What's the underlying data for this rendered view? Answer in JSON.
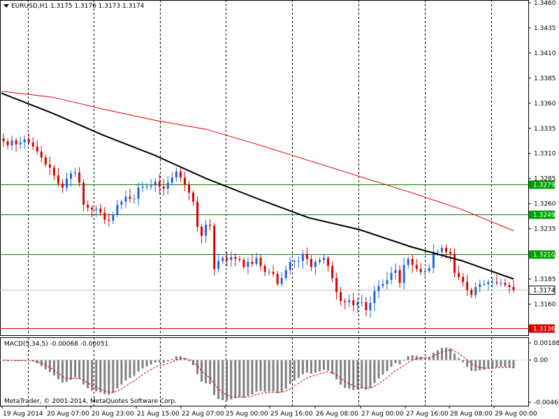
{
  "header": {
    "main_title": "EURUSD,H1  1.3175 1.3176 1.3173 1.3174",
    "macd_title": "MACD(5,34,5) -0.00068 -0.00051",
    "copyright": "MetaTrader, © 2001-2014, MetaQuotes Software Corp."
  },
  "colors": {
    "background": "#ffffff",
    "grid": "#000000",
    "bull_candle": "#1e64dc",
    "bear_candle": "#dc0000",
    "slow_ma": "#dc0000",
    "fast_ma": "#000000",
    "level_line": "#008000",
    "current_price_line": "#c0c0c0",
    "histogram": "#808080",
    "macd_signal": "#dc0000",
    "label_green": "#00a000",
    "label_red": "#dc0000",
    "label_white": "#ffffff"
  },
  "chart_data": [
    {
      "type": "candlestick",
      "symbol": "EURUSD",
      "timeframe": "H1",
      "last_ohlc": {
        "open": 1.3175,
        "high": 1.3176,
        "low": 1.3173,
        "close": 1.3174
      },
      "ylim": [
        1.3136,
        1.346
      ],
      "y_ticks": [
        "1.3460",
        "1.3435",
        "1.3410",
        "1.3385",
        "1.3360",
        "1.3335",
        "1.3310",
        "1.3285",
        "1.3260",
        "1.3235",
        "1.3210",
        "1.3185",
        "1.3160"
      ],
      "x_ticks": [
        "19 Aug 2014",
        "20 Aug 07:00",
        "20 Aug 23:00",
        "21 Aug 15:00",
        "22 Aug 07:00",
        "25 Aug 00:00",
        "25 Aug 16:00",
        "26 Aug 08:00",
        "27 Aug 00:00",
        "27 Aug 16:00",
        "28 Aug 08:00",
        "29 Aug 00:00"
      ],
      "price_levels": [
        {
          "label": "1.3279",
          "value": 1.3279,
          "kind": "green"
        },
        {
          "label": "1.3249",
          "value": 1.3249,
          "kind": "green"
        },
        {
          "label": "1.3210",
          "value": 1.321,
          "kind": "green"
        },
        {
          "label": "1.3174",
          "value": 1.3174,
          "kind": "current"
        },
        {
          "label": "1.3136",
          "value": 1.3136,
          "kind": "red"
        }
      ],
      "closes": [
        1.3322,
        1.3318,
        1.3323,
        1.3319,
        1.3321,
        1.3324,
        1.3321,
        1.3317,
        1.3312,
        1.3306,
        1.3299,
        1.3296,
        1.3288,
        1.328,
        1.3276,
        1.3285,
        1.329,
        1.3291,
        1.3281,
        1.3259,
        1.3256,
        1.3254,
        1.3255,
        1.3251,
        1.3244,
        1.3243,
        1.3249,
        1.3259,
        1.3262,
        1.3267,
        1.3265,
        1.3265,
        1.3276,
        1.3277,
        1.3277,
        1.3278,
        1.3282,
        1.3277,
        1.3275,
        1.3281,
        1.3286,
        1.3292,
        1.3286,
        1.3279,
        1.3271,
        1.3262,
        1.3237,
        1.3228,
        1.3239,
        1.3238,
        1.3195,
        1.3203,
        1.3206,
        1.3204,
        1.3207,
        1.3205,
        1.3204,
        1.3197,
        1.3202,
        1.32,
        1.3206,
        1.3198,
        1.3192,
        1.3192,
        1.319,
        1.318,
        1.3186,
        1.3194,
        1.3202,
        1.3203,
        1.3203,
        1.321,
        1.3205,
        1.3197,
        1.3202,
        1.3204,
        1.3206,
        1.3198,
        1.3186,
        1.3172,
        1.3163,
        1.3162,
        1.3164,
        1.3159,
        1.3162,
        1.3162,
        1.3154,
        1.3161,
        1.3173,
        1.3178,
        1.318,
        1.3184,
        1.3191,
        1.3194,
        1.3181,
        1.3199,
        1.3205,
        1.3199,
        1.3195,
        1.3192,
        1.3193,
        1.3196,
        1.3212,
        1.3212,
        1.3216,
        1.3212,
        1.321,
        1.3191,
        1.3187,
        1.3182,
        1.3174,
        1.3169,
        1.3177,
        1.318,
        1.318,
        1.3182,
        1.3182,
        1.3181,
        1.3181,
        1.3179,
        1.3177,
        1.3174
      ],
      "fast_ma": [
        1.337,
        1.335,
        1.3328,
        1.3308,
        1.3285,
        1.3265,
        1.3246,
        1.3234,
        1.3217,
        1.3203,
        1.3185
      ],
      "slow_ma": [
        1.3372,
        1.3366,
        1.3354,
        1.3343,
        1.3334,
        1.3319,
        1.3303,
        1.3287,
        1.3271,
        1.3254,
        1.3233
      ]
    },
    {
      "type": "bar",
      "name": "MACD(5,34,5)",
      "values_label": "-0.00068 -0.00051",
      "main": -0.00068,
      "signal": -0.00051,
      "ylim": [
        -0.00462,
        0.00188
      ],
      "y_ticks": [
        "0.00188",
        "0.00",
        "-0.00462"
      ]
    }
  ]
}
